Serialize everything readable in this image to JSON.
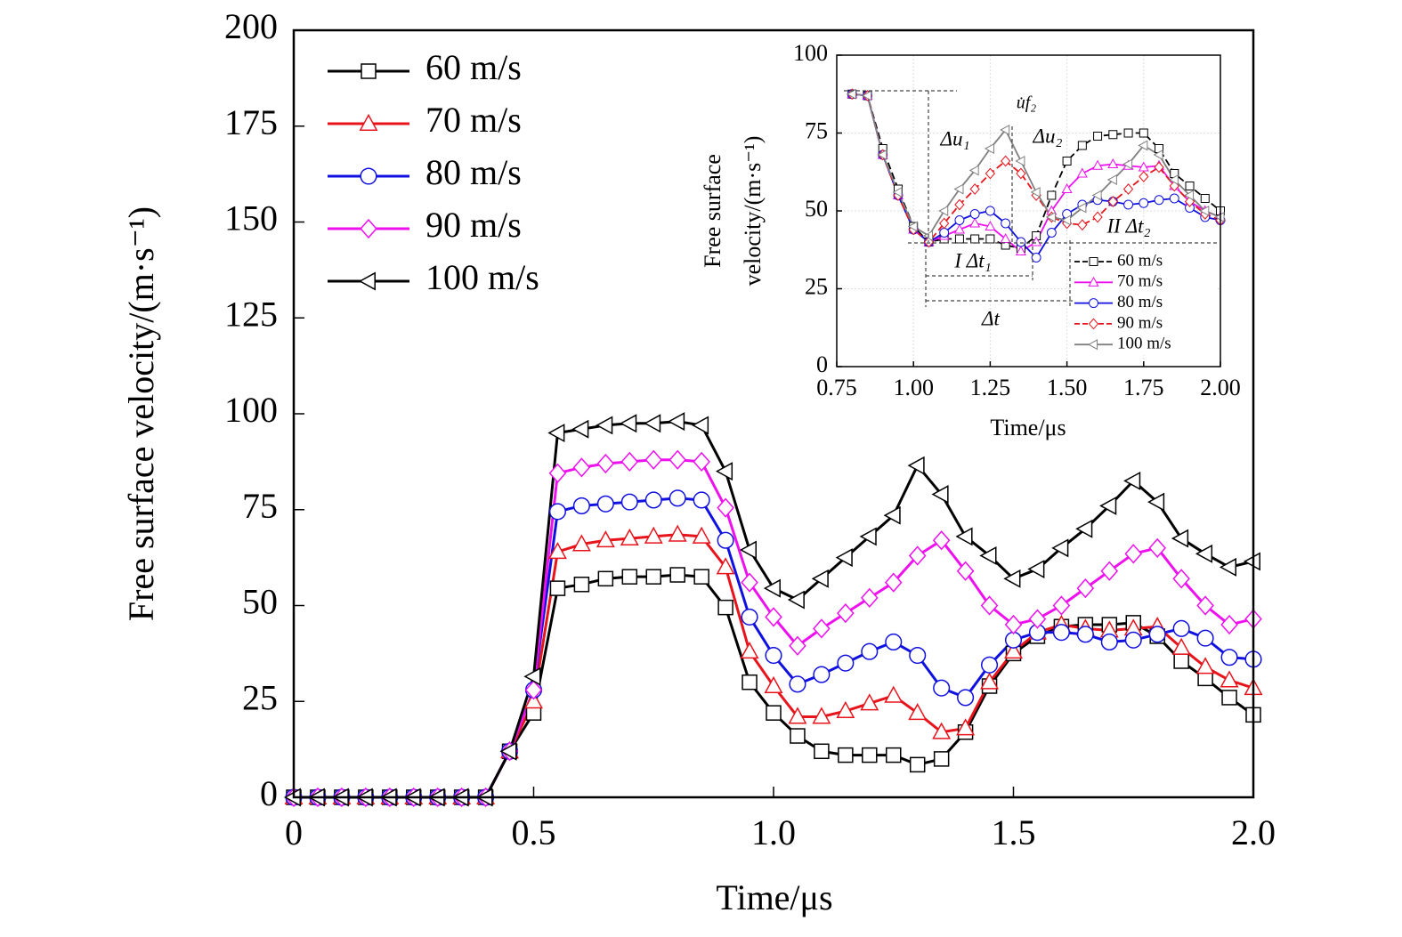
{
  "chart_data": [
    {
      "type": "line",
      "xlabel": "Time/μs",
      "ylabel": [
        "Free surface velocity/(m·s⁻¹)"
      ],
      "x": [
        0,
        0.05,
        0.1,
        0.15,
        0.2,
        0.25,
        0.3,
        0.35,
        0.4,
        0.45,
        0.5,
        0.55,
        0.6,
        0.65,
        0.7,
        0.75,
        0.8,
        0.85,
        0.9,
        0.95,
        1.0,
        1.05,
        1.1,
        1.15,
        1.2,
        1.25,
        1.3,
        1.35,
        1.4,
        1.45,
        1.5,
        1.55,
        1.6,
        1.65,
        1.7,
        1.75,
        1.8,
        1.85,
        1.9,
        1.95,
        2.0
      ],
      "xlim": [
        0,
        2.0
      ],
      "xticks": [
        0,
        0.5,
        {
          "value": 1.0,
          "label": "1.0"
        },
        1.5,
        {
          "value": 2.0,
          "label": "2.0"
        }
      ],
      "ylim": [
        0,
        200
      ],
      "yticks": [
        0,
        25,
        50,
        75,
        100,
        125,
        150,
        175,
        200
      ],
      "grid": false,
      "legend": "upper left",
      "series": [
        {
          "name": "60 m/s",
          "color": "#000000",
          "marker": "square",
          "dash": false,
          "values": [
            0,
            0,
            0,
            0,
            0,
            0,
            0,
            0,
            0,
            12,
            22,
            54.5,
            55.5,
            57,
            57.5,
            57.5,
            58,
            57.5,
            49.5,
            30,
            22,
            16,
            12,
            11,
            11,
            11,
            8.5,
            10,
            17,
            29,
            37.5,
            42,
            44.5,
            45,
            45,
            45.5,
            42,
            35.5,
            31,
            26,
            21.5
          ]
        },
        {
          "name": "70 m/s",
          "color": "#e8141c",
          "marker": "triangle",
          "dash": false,
          "values": [
            0,
            0,
            0,
            0,
            0,
            0,
            0,
            0,
            0,
            12,
            25,
            64,
            66,
            67,
            67.5,
            68,
            68.5,
            68,
            60,
            38,
            29,
            21,
            21,
            22.5,
            24.5,
            26.5,
            22,
            17,
            18,
            30,
            38,
            43,
            45,
            44,
            43.5,
            44,
            44.5,
            39,
            34,
            30.5,
            28.5
          ]
        },
        {
          "name": "80 m/s",
          "color": "#1010e0",
          "marker": "circle",
          "dash": false,
          "values": [
            0,
            0,
            0,
            0,
            0,
            0,
            0,
            0,
            0,
            12,
            28,
            74.5,
            76,
            76.5,
            77,
            77.5,
            78,
            77.5,
            67,
            47,
            37,
            29.5,
            32,
            35,
            38,
            40.5,
            37,
            28.5,
            26,
            34.5,
            41,
            43,
            43,
            42.5,
            40.5,
            41,
            42.5,
            44,
            41.5,
            36.5,
            36
          ]
        },
        {
          "name": "90 m/s",
          "color": "#ee10ee",
          "marker": "diamond",
          "dash": false,
          "values": [
            0,
            0,
            0,
            0,
            0,
            0,
            0,
            0,
            0,
            12,
            28,
            84.5,
            86,
            87,
            87.5,
            88,
            88,
            87.5,
            75.5,
            56,
            47,
            39.5,
            44,
            48,
            52,
            56,
            63,
            67,
            59,
            50,
            45,
            46.5,
            50,
            54.5,
            59,
            63.5,
            65,
            57,
            50,
            45,
            46.5
          ]
        },
        {
          "name": "100 m/s",
          "color": "#000000",
          "marker": "triangle-left",
          "dash": false,
          "values": [
            0,
            0,
            0,
            0,
            0,
            0,
            0,
            0,
            0,
            12,
            31.5,
            95,
            96,
            97,
            97.5,
            97.5,
            98,
            97,
            85,
            64.5,
            54.5,
            51.5,
            57,
            62.5,
            68,
            73.5,
            86.5,
            79,
            68,
            63,
            57,
            59.5,
            65,
            70,
            76,
            82.5,
            77,
            67.5,
            63.5,
            60,
            61.5
          ]
        }
      ]
    },
    {
      "type": "line",
      "xlabel": "Time/μs",
      "ylabel": [
        "Free surface",
        "velocity/(m·s⁻¹)"
      ],
      "x": [
        0.8,
        0.85,
        0.9,
        0.95,
        1.0,
        1.05,
        1.1,
        1.15,
        1.2,
        1.25,
        1.3,
        1.35,
        1.4,
        1.45,
        1.5,
        1.55,
        1.6,
        1.65,
        1.7,
        1.75,
        1.8,
        1.85,
        1.9,
        1.95,
        2.0
      ],
      "xlim": [
        0.75,
        2.0
      ],
      "xticks": [
        0.75,
        {
          "value": 1.0,
          "label": "1.00"
        },
        1.25,
        {
          "value": 1.5,
          "label": "1.50"
        },
        1.75,
        {
          "value": 2.0,
          "label": "2.00"
        }
      ],
      "ylim": [
        0,
        100
      ],
      "yticks": [
        0,
        25,
        50,
        75,
        100
      ],
      "grid": true,
      "legend": "lower right",
      "annotations": [
        "Δu₁",
        "Δu₂",
        "u̇f₂",
        "I  Δt₁",
        "II  Δt₂",
        "Δt"
      ],
      "series": [
        {
          "name": "60 m/s",
          "color": "#000000",
          "marker": "square",
          "dash": true,
          "values": [
            87.5,
            87,
            70,
            57,
            45,
            40,
            41,
            41,
            41,
            41,
            39,
            38,
            42,
            55,
            66,
            71,
            74,
            74.5,
            75,
            75,
            70,
            62,
            58,
            54,
            50
          ]
        },
        {
          "name": "70 m/s",
          "color": "#ee10ee",
          "marker": "triangle",
          "dash": false,
          "values": [
            87.5,
            87,
            68,
            55,
            44,
            40,
            42,
            44,
            46,
            45,
            41,
            37,
            40,
            50,
            57,
            62,
            64.5,
            65,
            64.5,
            64,
            64.5,
            58,
            53,
            50,
            48
          ]
        },
        {
          "name": "80 m/s",
          "color": "#1010e0",
          "marker": "circle",
          "dash": false,
          "values": [
            87.5,
            87,
            68,
            55,
            44,
            40,
            43,
            47,
            49,
            50,
            46,
            40,
            35,
            43,
            49,
            52,
            53.5,
            53,
            52,
            52.5,
            53.5,
            54,
            51,
            48,
            47
          ]
        },
        {
          "name": "90 m/s",
          "color": "#e8141c",
          "marker": "diamond",
          "dash": true,
          "values": [
            87.5,
            87,
            68,
            55,
            44,
            40,
            46,
            52,
            57,
            62,
            66,
            62,
            55,
            48,
            46,
            45.5,
            48,
            53,
            57,
            61,
            64,
            58,
            53,
            49,
            47
          ]
        },
        {
          "name": "100 m/s",
          "color": "#808080",
          "marker": "triangle-left",
          "dash": false,
          "values": [
            87.5,
            87,
            68,
            56,
            45,
            42,
            50,
            57,
            63,
            70,
            76,
            66,
            56,
            48,
            47,
            51,
            55,
            60,
            65,
            71,
            68,
            60,
            55,
            50,
            48
          ]
        }
      ]
    }
  ]
}
